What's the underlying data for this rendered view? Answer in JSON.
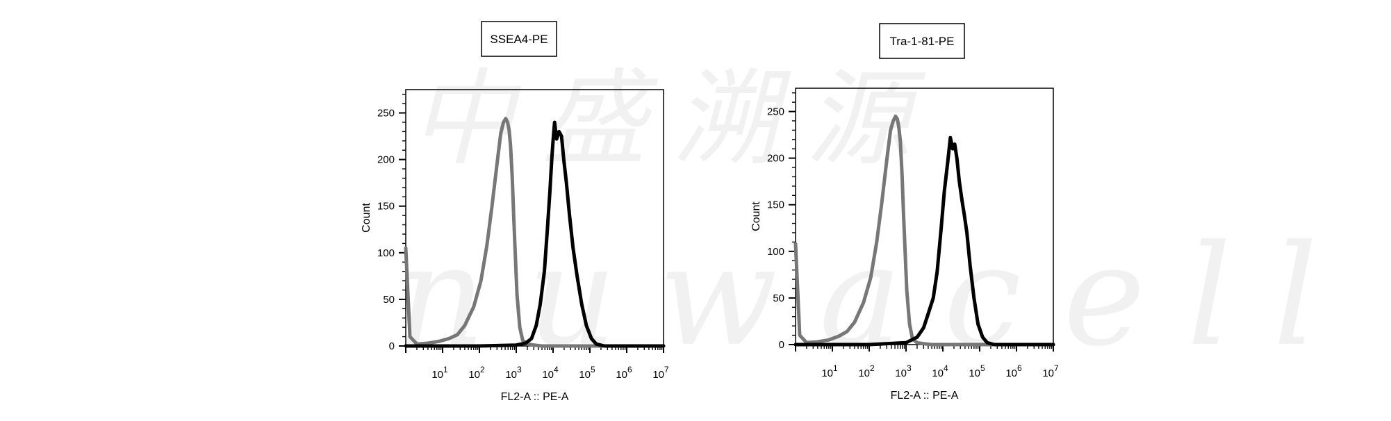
{
  "watermark": {
    "top": "中盛溯源",
    "bottom": "nuwacell"
  },
  "chart_data": [
    {
      "type": "line",
      "title": "SSEA4-PE",
      "xlabel": "FL2-A :: PE-A",
      "ylabel": "Count",
      "xscale": "log",
      "xlim": [
        1,
        10000000
      ],
      "ylim": [
        0,
        275
      ],
      "yticks": [
        0,
        50,
        100,
        150,
        200,
        250
      ],
      "xtick_exponents": [
        "1",
        "2",
        "3",
        "4",
        "5",
        "6",
        "7"
      ],
      "grid": false,
      "legend": "none",
      "series": [
        {
          "color": "#777777",
          "x": [
            1,
            1.3,
            2,
            4,
            8,
            15,
            25,
            40,
            70,
            110,
            160,
            220,
            300,
            380,
            450,
            520,
            580,
            640,
            700,
            780,
            850,
            950,
            1050,
            1250,
            1500,
            2000,
            3000,
            5000,
            10000000
          ],
          "y": [
            105,
            10,
            2,
            3,
            5,
            8,
            12,
            22,
            42,
            70,
            108,
            150,
            195,
            228,
            240,
            244,
            240,
            232,
            215,
            180,
            140,
            95,
            55,
            20,
            6,
            2,
            1,
            0,
            0
          ]
        },
        {
          "color": "#000000",
          "x": [
            1,
            100,
            1000,
            1800,
            2600,
            3500,
            4500,
            5800,
            7000,
            8200,
            9200,
            10000,
            11000,
            12500,
            14500,
            17000,
            19500,
            23000,
            28000,
            35000,
            45000,
            60000,
            80000,
            110000,
            150000,
            250000,
            10000000
          ],
          "y": [
            0,
            0,
            1,
            3,
            8,
            22,
            45,
            80,
            125,
            165,
            200,
            220,
            240,
            222,
            230,
            225,
            200,
            175,
            140,
            105,
            75,
            45,
            22,
            8,
            2,
            0,
            0
          ]
        }
      ]
    },
    {
      "type": "line",
      "title": "Tra-1-81-PE",
      "xlabel": "FL2-A :: PE-A",
      "ylabel": "Count",
      "xscale": "log",
      "xlim": [
        1,
        10000000
      ],
      "ylim": [
        0,
        275
      ],
      "yticks": [
        0,
        50,
        100,
        150,
        200,
        250
      ],
      "xtick_exponents": [
        "1",
        "2",
        "3",
        "4",
        "5",
        "6",
        "7"
      ],
      "grid": false,
      "legend": "none",
      "series": [
        {
          "color": "#777777",
          "x": [
            1,
            1.3,
            2,
            4,
            8,
            15,
            25,
            40,
            70,
            110,
            160,
            220,
            300,
            380,
            450,
            520,
            580,
            640,
            700,
            780,
            850,
            950,
            1050,
            1250,
            1500,
            2000,
            3000,
            5000,
            10000000
          ],
          "y": [
            108,
            10,
            2,
            3,
            5,
            9,
            14,
            24,
            45,
            72,
            110,
            152,
            198,
            230,
            240,
            245,
            242,
            233,
            218,
            182,
            142,
            98,
            58,
            22,
            6,
            2,
            1,
            0,
            0
          ]
        },
        {
          "color": "#000000",
          "x": [
            1,
            100,
            1000,
            2000,
            3000,
            4000,
            5500,
            7000,
            9000,
            11000,
            13500,
            16000,
            18500,
            21000,
            24000,
            28000,
            33000,
            38000,
            45000,
            55000,
            70000,
            90000,
            120000,
            160000,
            250000,
            10000000
          ],
          "y": [
            0,
            0,
            2,
            8,
            18,
            33,
            50,
            78,
            125,
            165,
            195,
            222,
            210,
            215,
            200,
            175,
            155,
            140,
            120,
            85,
            50,
            22,
            8,
            2,
            0,
            0
          ]
        }
      ]
    }
  ]
}
